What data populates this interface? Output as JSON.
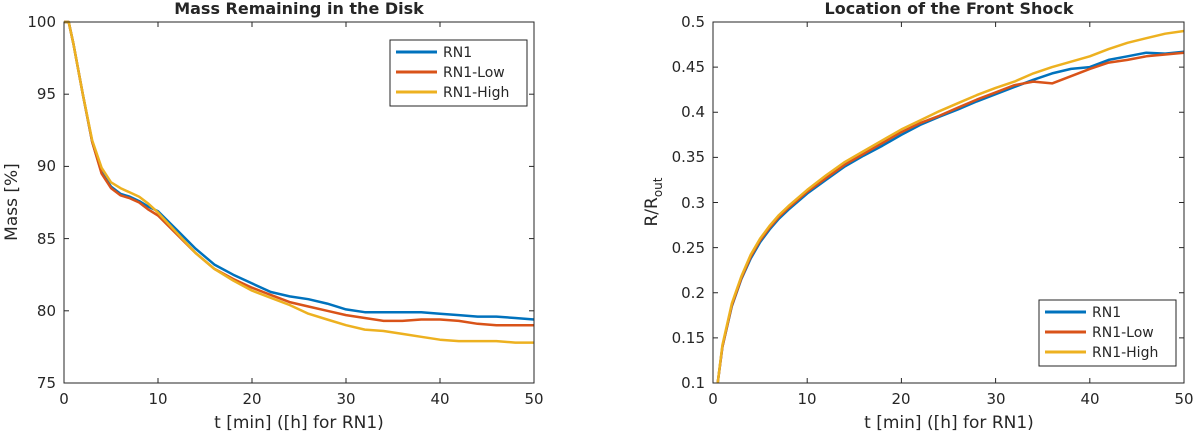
{
  "chart_data": [
    {
      "type": "line",
      "title": "Mass Remaining in the Disk",
      "xlabel": "t [min] ([h] for RN1)",
      "ylabel": "Mass [%]",
      "xlim": [
        0,
        50
      ],
      "ylim": [
        75,
        100
      ],
      "xticks": [
        "0",
        "10",
        "20",
        "30",
        "40",
        "50"
      ],
      "yticks": [
        "75",
        "80",
        "85",
        "90",
        "95",
        "100"
      ],
      "legend_position": "top-right",
      "series": [
        {
          "name": "RN1",
          "color": "#0072BD",
          "x": [
            0,
            0.5,
            1,
            2,
            3,
            4,
            5,
            6,
            7,
            8,
            9,
            10,
            12,
            14,
            16,
            18,
            20,
            22,
            24,
            26,
            28,
            30,
            32,
            34,
            36,
            38,
            40,
            42,
            44,
            46,
            48,
            50
          ],
          "y": [
            100,
            100,
            98.5,
            95,
            91.7,
            89.6,
            88.6,
            88.1,
            87.9,
            87.6,
            87.2,
            86.9,
            85.6,
            84.3,
            83.2,
            82.5,
            81.9,
            81.3,
            81.0,
            80.8,
            80.5,
            80.1,
            79.9,
            79.9,
            79.9,
            79.9,
            79.8,
            79.7,
            79.6,
            79.6,
            79.5,
            79.4
          ]
        },
        {
          "name": "RN1-Low",
          "color": "#D95319",
          "x": [
            0,
            0.5,
            1,
            2,
            3,
            4,
            5,
            6,
            7,
            8,
            9,
            10,
            12,
            14,
            16,
            18,
            20,
            22,
            24,
            26,
            28,
            30,
            32,
            34,
            36,
            38,
            40,
            42,
            44,
            46,
            48,
            50
          ],
          "y": [
            100,
            100,
            98.5,
            95,
            91.7,
            89.5,
            88.5,
            88.0,
            87.8,
            87.5,
            87.0,
            86.6,
            85.3,
            84.0,
            82.9,
            82.2,
            81.6,
            81.1,
            80.6,
            80.3,
            80.0,
            79.7,
            79.5,
            79.3,
            79.3,
            79.4,
            79.4,
            79.3,
            79.1,
            79.0,
            79.0,
            79.0
          ]
        },
        {
          "name": "RN1-High",
          "color": "#EDB120",
          "x": [
            0,
            0.5,
            1,
            2,
            3,
            4,
            5,
            6,
            7,
            8,
            9,
            10,
            12,
            14,
            16,
            18,
            20,
            22,
            24,
            26,
            28,
            30,
            32,
            34,
            36,
            38,
            40,
            42,
            44,
            46,
            48,
            50
          ],
          "y": [
            100,
            100,
            98.5,
            95,
            91.8,
            89.9,
            88.9,
            88.5,
            88.2,
            87.9,
            87.4,
            86.8,
            85.4,
            84.0,
            82.9,
            82.1,
            81.4,
            80.9,
            80.4,
            79.8,
            79.4,
            79.0,
            78.7,
            78.6,
            78.4,
            78.2,
            78.0,
            77.9,
            77.9,
            77.9,
            77.8,
            77.8
          ]
        }
      ]
    },
    {
      "type": "line",
      "title": "Location of the Front Shock",
      "xlabel": "t [min] ([h] for RN1)",
      "ylabel": "R/R",
      "ylabel_sub": "out",
      "xlim": [
        0,
        50
      ],
      "ylim": [
        0.1,
        0.5
      ],
      "xticks": [
        "0",
        "10",
        "20",
        "30",
        "40",
        "50"
      ],
      "yticks": [
        "0.1",
        "0.15",
        "0.2",
        "0.25",
        "0.3",
        "0.35",
        "0.4",
        "0.45",
        "0.5"
      ],
      "legend_position": "bottom-right",
      "series": [
        {
          "name": "RN1",
          "color": "#0072BD",
          "x": [
            0.5,
            1,
            2,
            3,
            4,
            5,
            6,
            7,
            8,
            10,
            12,
            14,
            16,
            18,
            20,
            22,
            24,
            26,
            28,
            30,
            32,
            34,
            36,
            38,
            40,
            42,
            44,
            46,
            48,
            50
          ],
          "y": [
            0.1,
            0.14,
            0.185,
            0.215,
            0.238,
            0.256,
            0.27,
            0.282,
            0.292,
            0.31,
            0.325,
            0.34,
            0.352,
            0.363,
            0.375,
            0.386,
            0.395,
            0.403,
            0.412,
            0.42,
            0.428,
            0.436,
            0.443,
            0.448,
            0.45,
            0.458,
            0.462,
            0.466,
            0.465,
            0.467
          ]
        },
        {
          "name": "RN1-Low",
          "color": "#D95319",
          "x": [
            0.5,
            1,
            2,
            3,
            4,
            5,
            6,
            7,
            8,
            10,
            12,
            14,
            16,
            18,
            20,
            22,
            24,
            26,
            28,
            30,
            32,
            34,
            36,
            38,
            40,
            42,
            44,
            46,
            48,
            50
          ],
          "y": [
            0.1,
            0.14,
            0.186,
            0.216,
            0.24,
            0.258,
            0.272,
            0.284,
            0.294,
            0.312,
            0.327,
            0.342,
            0.354,
            0.366,
            0.378,
            0.388,
            0.396,
            0.405,
            0.414,
            0.422,
            0.43,
            0.434,
            0.432,
            0.44,
            0.448,
            0.455,
            0.458,
            0.462,
            0.464,
            0.466
          ]
        },
        {
          "name": "RN1-High",
          "color": "#EDB120",
          "x": [
            0.5,
            1,
            2,
            3,
            4,
            5,
            6,
            7,
            8,
            10,
            12,
            14,
            16,
            18,
            20,
            22,
            24,
            26,
            28,
            30,
            32,
            34,
            36,
            38,
            40,
            42,
            44,
            46,
            48,
            50
          ],
          "y": [
            0.1,
            0.142,
            0.188,
            0.218,
            0.242,
            0.26,
            0.274,
            0.286,
            0.296,
            0.314,
            0.33,
            0.345,
            0.357,
            0.369,
            0.381,
            0.391,
            0.401,
            0.41,
            0.419,
            0.427,
            0.434,
            0.443,
            0.45,
            0.456,
            0.462,
            0.47,
            0.477,
            0.482,
            0.487,
            0.49
          ]
        }
      ]
    }
  ]
}
